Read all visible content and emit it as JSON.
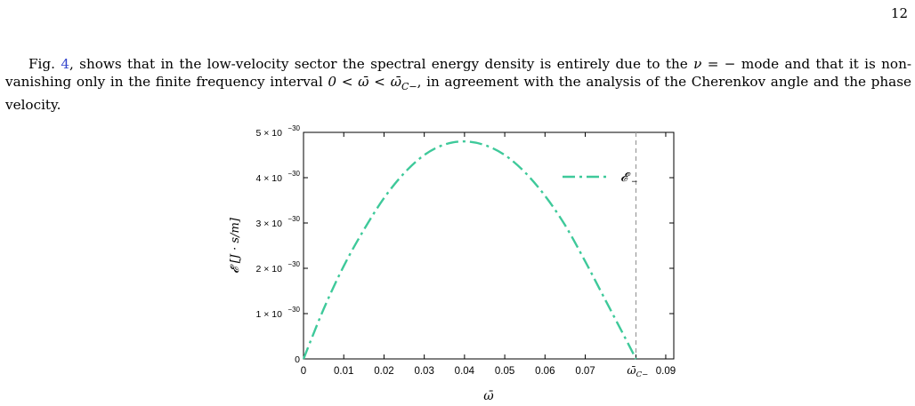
{
  "page_number": "12",
  "paragraph": {
    "part1": "Fig. ",
    "ref": "4",
    "part2": ", shows that in the low-velocity sector the spectral energy density is entirely due to the ",
    "math1": "ν = −",
    "part3": " mode and that it is non-vanishing only in the finite frequency interval ",
    "math2": "0 < ω̄ < ω̄",
    "math2_sub": "C−",
    "part4": ", in agreement with the analysis of the Cherenkov angle and the phase velocity."
  },
  "chart_data": {
    "type": "line",
    "xlabel": "ω̄",
    "ylabel": "𝓔 [J · s/m]",
    "xlim": [
      0,
      0.092
    ],
    "ylim": [
      0,
      5.0
    ],
    "y_unit_exponent": "−30",
    "x_ticks": [
      {
        "value": 0,
        "label": "0"
      },
      {
        "value": 0.01,
        "label": "0.01"
      },
      {
        "value": 0.02,
        "label": "0.02"
      },
      {
        "value": 0.03,
        "label": "0.03"
      },
      {
        "value": 0.04,
        "label": "0.04"
      },
      {
        "value": 0.05,
        "label": "0.05"
      },
      {
        "value": 0.06,
        "label": "0.06"
      },
      {
        "value": 0.07,
        "label": "0.07"
      },
      {
        "value": 0.09,
        "label": "0.09"
      }
    ],
    "x_special_tick": {
      "value": 0.0826,
      "label": "ω̄",
      "sub": "C−"
    },
    "y_ticks": [
      {
        "value": 0,
        "mantissa": "0",
        "exponent": ""
      },
      {
        "value": 1,
        "mantissa": "1 × 10",
        "exponent": "−30"
      },
      {
        "value": 2,
        "mantissa": "2 × 10",
        "exponent": "−30"
      },
      {
        "value": 3,
        "mantissa": "3 × 10",
        "exponent": "−30"
      },
      {
        "value": 4,
        "mantissa": "4 × 10",
        "exponent": "−30"
      },
      {
        "value": 5,
        "mantissa": "5 × 10",
        "exponent": "−30"
      }
    ],
    "series": [
      {
        "name": "𝓔",
        "name_sub": "−",
        "color": "#3ec99a",
        "style": "dash-dot",
        "x": [
          0,
          0.005,
          0.01,
          0.015,
          0.02,
          0.025,
          0.03,
          0.035,
          0.04,
          0.045,
          0.05,
          0.055,
          0.06,
          0.065,
          0.07,
          0.075,
          0.08,
          0.0826
        ],
        "y": [
          0,
          1.1,
          2.05,
          2.85,
          3.55,
          4.1,
          4.5,
          4.73,
          4.8,
          4.72,
          4.5,
          4.12,
          3.6,
          2.95,
          2.15,
          1.3,
          0.45,
          0
        ]
      }
    ],
    "vline": {
      "x": 0.0826,
      "color": "#999999",
      "style": "dashed"
    },
    "legend": "top-right",
    "grid": false
  }
}
